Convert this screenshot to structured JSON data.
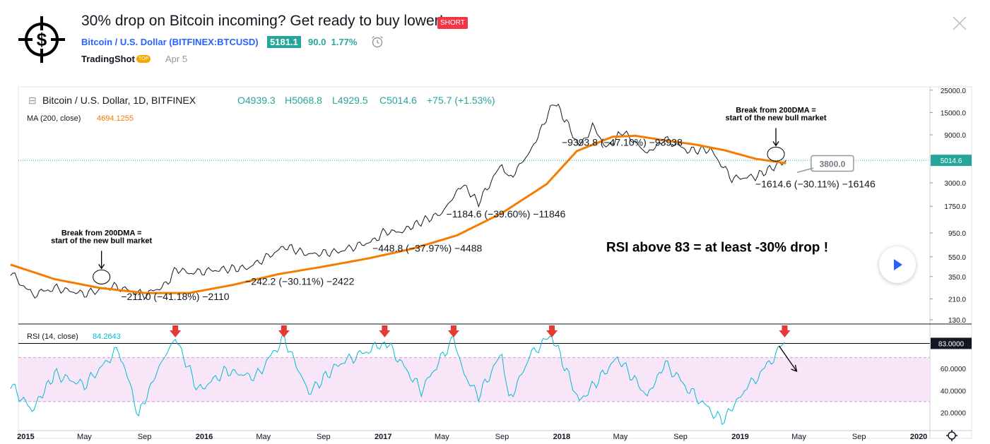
{
  "header": {
    "title": "30% drop on Bitcoin incoming? Get ready to buy lower!",
    "badge": "SHORT",
    "symbol": "Bitcoin / U.S. Dollar (BITFINEX:BTCUSD)",
    "price": "5181.1",
    "change": "90.0",
    "change_pct": "1.77%",
    "author": "TradingShot",
    "author_badge": "TOP",
    "date": "Apr 5"
  },
  "chart_data": [
    {
      "type": "line",
      "title": "Bitcoin / U.S. Dollar, 1D, BITFINEX",
      "ohlc": {
        "open": "O4939.3",
        "high": "H5068.8",
        "low": "L4929.5",
        "close": "C5014.6",
        "change": "+75.7 (+1.53%)"
      },
      "ma_label": "MA (200, close)",
      "ma_value": "4694.1255",
      "y_scale": "log",
      "ylim": [
        120,
        27000
      ],
      "y_ticks": [
        "25000.0",
        "15000.0",
        "9000.0",
        "5014.6",
        "3000.0",
        "1750.0",
        "950.0",
        "550.0",
        "350.0",
        "210.0",
        "130.0"
      ],
      "y_tick_values": [
        25000,
        15000,
        9000,
        5014.6,
        3000,
        1750,
        950,
        550,
        350,
        210,
        130
      ],
      "current_price_label": "5014.6",
      "x_ticks": [
        "2015",
        "May",
        "Sep",
        "2016",
        "May",
        "Sep",
        "2017",
        "May",
        "Sep",
        "2018",
        "May",
        "Sep",
        "2019",
        "May",
        "Sep",
        "2020"
      ],
      "x_tick_dates": [
        "2015-01-01",
        "2015-05-01",
        "2015-09-01",
        "2016-01-01",
        "2016-05-01",
        "2016-09-01",
        "2017-01-01",
        "2017-05-01",
        "2017-09-01",
        "2018-01-01",
        "2018-05-01",
        "2018-09-01",
        "2019-01-01",
        "2019-05-01",
        "2019-09-01",
        "2020-01-01"
      ],
      "series": [
        {
          "name": "Bitcoin / U.S. Dollar",
          "color": "#131722",
          "x": [
            "2014-12-01",
            "2015-01-15",
            "2015-03-01",
            "2015-05-01",
            "2015-07-01",
            "2015-09-01",
            "2015-10-15",
            "2015-11-05",
            "2015-12-01",
            "2016-02-01",
            "2016-04-01",
            "2016-06-15",
            "2016-08-01",
            "2016-10-01",
            "2016-12-15",
            "2017-01-05",
            "2017-02-01",
            "2017-03-15",
            "2017-05-01",
            "2017-06-12",
            "2017-07-15",
            "2017-09-01",
            "2017-09-15",
            "2017-11-01",
            "2017-12-17",
            "2018-01-15",
            "2018-02-06",
            "2018-03-05",
            "2018-04-06",
            "2018-05-05",
            "2018-06-25",
            "2018-08-01",
            "2018-09-15",
            "2018-11-01",
            "2018-12-15",
            "2019-02-01",
            "2019-04-05"
          ],
          "y": [
            380,
            230,
            270,
            235,
            280,
            230,
            290,
            420,
            380,
            410,
            430,
            700,
            580,
            620,
            800,
            1000,
            950,
            1200,
            1500,
            2900,
            1900,
            4700,
            3200,
            6500,
            19500,
            11000,
            6900,
            10800,
            6600,
            9800,
            5900,
            8200,
            6300,
            6400,
            3300,
            3450,
            5014
          ]
        },
        {
          "name": "MA (200, close)",
          "color": "#f57c00",
          "x": [
            "2014-12-01",
            "2015-03-01",
            "2015-06-01",
            "2015-09-01",
            "2015-12-01",
            "2016-03-01",
            "2016-06-01",
            "2016-09-01",
            "2016-12-01",
            "2017-03-01",
            "2017-06-01",
            "2017-09-01",
            "2017-12-01",
            "2018-02-01",
            "2018-04-15",
            "2018-06-01",
            "2018-08-01",
            "2018-10-01",
            "2018-12-01",
            "2019-02-01",
            "2019-04-05"
          ],
          "y": [
            460,
            330,
            270,
            240,
            240,
            290,
            370,
            440,
            530,
            660,
            900,
            1500,
            2900,
            6200,
            8600,
            8800,
            7900,
            7200,
            6300,
            5200,
            4694
          ]
        }
      ],
      "measurements": [
        {
          "label": "−211.0 (−41.18%) −2110",
          "x": "2015-07-15",
          "y": 205
        },
        {
          "label": "−242.2 (−30.11%) −2422",
          "x": "2016-03-25",
          "y": 290
        },
        {
          "label": "−448.8 (−37.97%) −4488",
          "x": "2016-12-10",
          "y": 620
        },
        {
          "label": "−1184.6 (−39.60%) −11846",
          "x": "2017-05-10",
          "y": 1360
        },
        {
          "label": "−9393.8 (−47.10%) −93938",
          "x": "2018-01-01",
          "y": 7000
        },
        {
          "label": "−1614.6 (−30.11%) −16146",
          "x": "2019-02-01",
          "y": 2700
        }
      ],
      "annotations": [
        {
          "lines": [
            "Break from 200DMA =",
            "start of the new bull market"
          ],
          "x": "2015-06-05",
          "y": 900
        },
        {
          "lines": [
            "Break from 200DMA =",
            "start of the new bull market"
          ],
          "x": "2019-03-15",
          "y": 15000
        },
        {
          "lines": [
            "RSI above 83 = at least -30% drop !"
          ],
          "x": "2018-11-15",
          "y": 620
        }
      ],
      "callout": "3800.0"
    },
    {
      "type": "line",
      "title": "RSI (14, close)",
      "rsi_label": "RSI (14, close)",
      "rsi_value": "84.2643",
      "ylim": [
        10,
        100
      ],
      "y_ticks": [
        "83.0000",
        "60.0000",
        "40.0000",
        "20.0000"
      ],
      "y_tick_values": [
        83,
        60,
        40,
        20
      ],
      "band": [
        30,
        70
      ],
      "threshold": 83,
      "series": [
        {
          "name": "RSI (14, close)",
          "color": "#00bcd4",
          "x": [
            "2014-12-01",
            "2015-01-14",
            "2015-03-01",
            "2015-05-01",
            "2015-07-10",
            "2015-08-20",
            "2015-10-01",
            "2015-11-03",
            "2015-12-20",
            "2016-02-15",
            "2016-04-15",
            "2016-06-12",
            "2016-08-02",
            "2016-10-01",
            "2016-12-20",
            "2017-01-04",
            "2017-03-20",
            "2017-05-25",
            "2017-06-15",
            "2017-07-15",
            "2017-09-01",
            "2017-09-15",
            "2017-11-01",
            "2017-12-12",
            "2018-02-06",
            "2018-04-25",
            "2018-06-25",
            "2018-08-01",
            "2018-09-15",
            "2018-11-25",
            "2019-01-10",
            "2019-02-20",
            "2019-04-02"
          ],
          "y": [
            45,
            22,
            55,
            45,
            78,
            18,
            62,
            88,
            40,
            58,
            52,
            88,
            38,
            64,
            80,
            86,
            40,
            88,
            55,
            35,
            75,
            30,
            75,
            90,
            30,
            70,
            35,
            65,
            42,
            12,
            40,
            60,
            84
          ]
        }
      ],
      "arrows_at": [
        "2015-11-03",
        "2016-06-12",
        "2017-01-04",
        "2017-05-25",
        "2017-12-12",
        "2019-04-02"
      ]
    }
  ],
  "colors": {
    "price_line": "#131722",
    "ma": "#f57c00",
    "rsi": "#00bcd4",
    "band_fill": "#f8e6f8",
    "arrow": "#e53935",
    "accent": "#2962ff",
    "up": "#26a69a"
  }
}
